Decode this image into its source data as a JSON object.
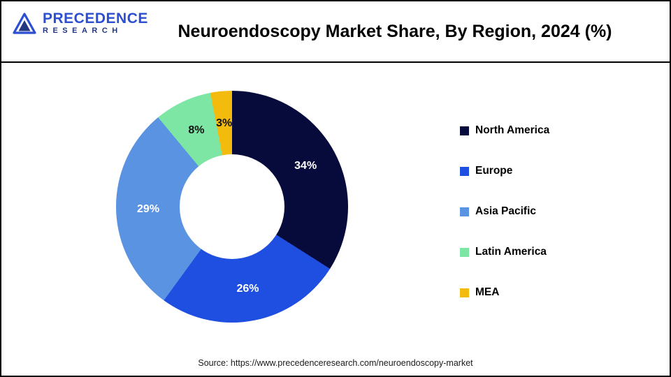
{
  "header": {
    "title": "Neuroendoscopy Market Share, By Region, 2024 (%)"
  },
  "logo": {
    "name": "Precedence Research",
    "line1": "PRECEDENCE",
    "line2": "RESEARCH"
  },
  "chart_data": {
    "type": "pie",
    "variant": "donut",
    "title": "Neuroendoscopy Market Share, By Region, 2024 (%)",
    "categories": [
      "North America",
      "Europe",
      "Asia Pacific",
      "Latin America",
      "MEA"
    ],
    "values": [
      34,
      26,
      29,
      8,
      3
    ],
    "unit": "%",
    "colors": [
      "#070b3c",
      "#1f4fe0",
      "#5b93e3",
      "#7de6a5",
      "#f2bb0d"
    ],
    "slice_label_colors": [
      "#ffffff",
      "#ffffff",
      "#ffffff",
      "#111111",
      "#111111"
    ],
    "start_angle_deg": 0,
    "direction": "clockwise",
    "legend_position": "right"
  },
  "footer": {
    "source": "Source: https://www.precedenceresearch.com/neuroendoscopy-market"
  }
}
